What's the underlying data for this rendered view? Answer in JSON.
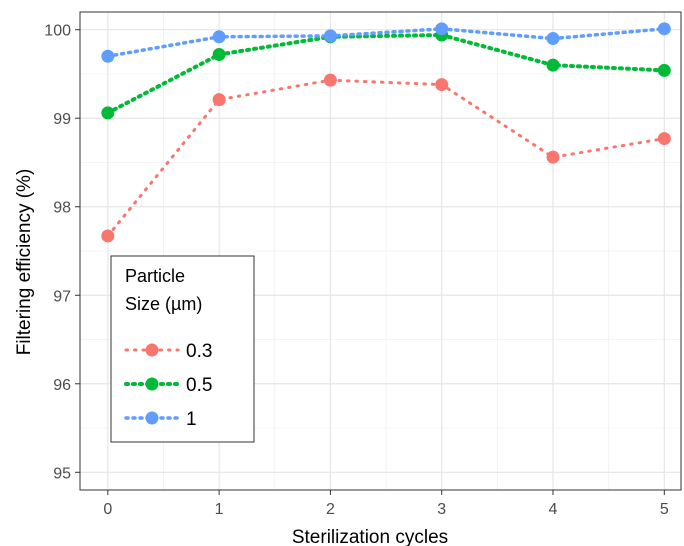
{
  "chart_data": {
    "type": "line",
    "title": "",
    "xlabel": "Sterilization cycles",
    "ylabel": "Filtering efficiency (%)",
    "x": [
      0,
      1,
      2,
      3,
      4,
      5
    ],
    "xticks": [
      "0",
      "1",
      "2",
      "3",
      "4",
      "5"
    ],
    "yticks": [
      "95",
      "96",
      "97",
      "98",
      "99",
      "100"
    ],
    "xlim": [
      -0.25,
      5.15
    ],
    "ylim": [
      94.8,
      100.2
    ],
    "grid": true,
    "line_style": "dotted",
    "legend": {
      "title_line1": "Particle",
      "title_line2": "Size (µm)",
      "placement": "bottom-left"
    },
    "series": [
      {
        "name": "0.3",
        "color": "#f8766d",
        "values": [
          97.67,
          99.21,
          99.43,
          99.38,
          98.56,
          98.77
        ]
      },
      {
        "name": "0.5",
        "color": "#00ba38",
        "values": [
          99.06,
          99.72,
          99.92,
          99.94,
          99.6,
          99.54
        ]
      },
      {
        "name": "1",
        "color": "#619cff",
        "values": [
          99.7,
          99.92,
          99.93,
          100.01,
          99.9,
          100.01
        ]
      }
    ]
  }
}
